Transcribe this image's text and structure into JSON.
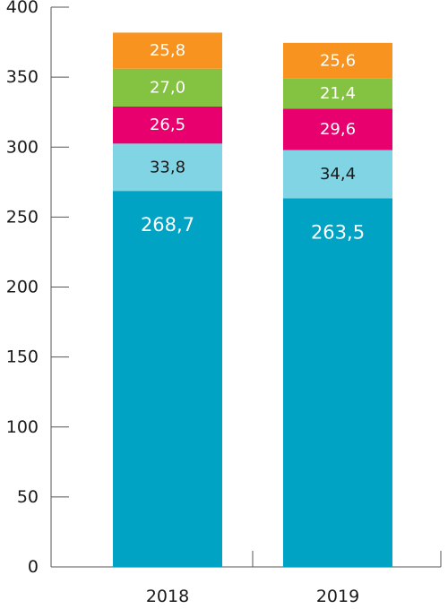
{
  "chart_data": {
    "type": "bar",
    "stacked": true,
    "categories": [
      "2018",
      "2019"
    ],
    "ylim": [
      0,
      400
    ],
    "yticks": [
      "0",
      "50",
      "100",
      "150",
      "200",
      "250",
      "300",
      "350",
      "400"
    ],
    "grid": false,
    "series": [
      {
        "values": [
          268.7,
          263.5
        ],
        "labels": [
          "268,7",
          "263,5"
        ],
        "color": "#00a3c4",
        "label_color": "#ffffff"
      },
      {
        "values": [
          33.8,
          34.4
        ],
        "labels": [
          "33,8",
          "34,4"
        ],
        "color": "#80d4e4",
        "label_color": "#1a1a1a"
      },
      {
        "values": [
          26.5,
          29.6
        ],
        "labels": [
          "26,5",
          "29,6"
        ],
        "color": "#e8006e",
        "label_color": "#ffffff"
      },
      {
        "values": [
          27.0,
          21.4
        ],
        "labels": [
          "27,0",
          "21,4"
        ],
        "color": "#84c341",
        "label_color": "#ffffff"
      },
      {
        "values": [
          25.8,
          25.6
        ],
        "labels": [
          "25,8",
          "25,6"
        ],
        "color": "#f7931e",
        "label_color": "#ffffff"
      }
    ]
  }
}
